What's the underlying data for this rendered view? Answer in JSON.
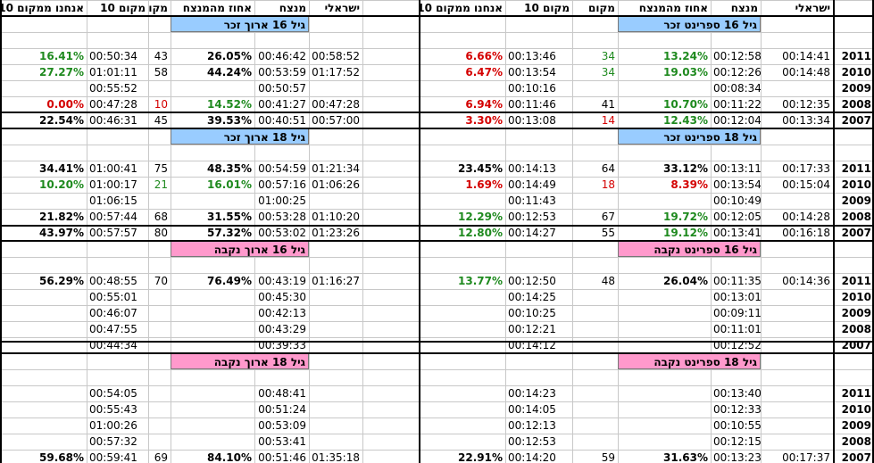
{
  "colors": {
    "blue": "#99ccff",
    "pink": "#ff99cc",
    "green": "#1f8a1f",
    "red": "#d40000"
  },
  "header": {
    "left": [
      "אנחנו ממקום 10",
      "מקום 10",
      "מקום",
      "אחוז מהמנצח",
      "מנצח",
      "ישראלי"
    ],
    "right": [
      "אנחנו ממקום 10",
      "מקום 10",
      "מקום",
      "אחוז מהמנצח",
      "מנצח",
      "ישראלי"
    ]
  },
  "blocks": [
    {
      "left": {
        "label": "גיל 16 ארוך זכר",
        "color": "blue",
        "rows": [
          [
            {
              "v": "16.41%",
              "c": "green"
            },
            "00:50:34",
            "43",
            {
              "v": "26.05%"
            },
            "00:46:42",
            "00:58:52"
          ],
          [
            {
              "v": "27.27%",
              "c": "green"
            },
            "01:01:11",
            "58",
            {
              "v": "44.24%"
            },
            "00:53:59",
            "01:17:52"
          ],
          [
            "",
            "00:55:52",
            "",
            "",
            "00:50:57",
            ""
          ],
          [
            {
              "v": "0.00%",
              "c": "red"
            },
            "00:47:28",
            {
              "v": "10",
              "c": "red"
            },
            {
              "v": "14.52%",
              "c": "green"
            },
            "00:41:27",
            "00:47:28"
          ],
          [
            {
              "v": "22.54%"
            },
            "00:46:31",
            "45",
            {
              "v": "39.53%"
            },
            "00:40:51",
            "00:57:00"
          ]
        ]
      },
      "right": {
        "label": "גיל 16 ספרינט זכר",
        "color": "blue",
        "rows": [
          [
            {
              "v": "6.66%",
              "c": "red"
            },
            "00:13:46",
            {
              "v": "34",
              "c": "green"
            },
            {
              "v": "13.24%",
              "c": "green"
            },
            "00:12:58",
            "00:14:41"
          ],
          [
            {
              "v": "6.47%",
              "c": "red"
            },
            "00:13:54",
            {
              "v": "34",
              "c": "green"
            },
            {
              "v": "19.03%",
              "c": "green"
            },
            "00:12:26",
            "00:14:48"
          ],
          [
            "",
            "00:10:16",
            "",
            "",
            "00:08:34",
            ""
          ],
          [
            {
              "v": "6.94%",
              "c": "red"
            },
            "00:11:46",
            "41",
            {
              "v": "10.70%",
              "c": "green"
            },
            "00:11:22",
            "00:12:35"
          ],
          [
            {
              "v": "3.30%",
              "c": "red"
            },
            "00:13:08",
            {
              "v": "14",
              "c": "red"
            },
            {
              "v": "12.43%",
              "c": "green"
            },
            "00:12:04",
            "00:13:34"
          ]
        ]
      }
    },
    {
      "left": {
        "label": "גיל 18 ארוך זכר",
        "color": "blue",
        "rows": [
          [
            {
              "v": "34.41%"
            },
            "01:00:41",
            "75",
            {
              "v": "48.35%"
            },
            "00:54:59",
            "01:21:34"
          ],
          [
            {
              "v": "10.20%",
              "c": "green"
            },
            "01:00:17",
            {
              "v": "21",
              "c": "green"
            },
            {
              "v": "16.01%",
              "c": "green"
            },
            "00:57:16",
            "01:06:26"
          ],
          [
            "",
            "01:06:15",
            "",
            "",
            "01:00:25",
            ""
          ],
          [
            {
              "v": "21.82%"
            },
            "00:57:44",
            "68",
            {
              "v": "31.55%"
            },
            "00:53:28",
            "01:10:20"
          ],
          [
            {
              "v": "43.97%"
            },
            "00:57:57",
            "80",
            {
              "v": "57.32%"
            },
            "00:53:02",
            "01:23:26"
          ]
        ]
      },
      "right": {
        "label": "גיל 18 ספרינט זכר",
        "color": "blue",
        "rows": [
          [
            {
              "v": "23.45%"
            },
            "00:14:13",
            "64",
            {
              "v": "33.12%"
            },
            "00:13:11",
            "00:17:33"
          ],
          [
            {
              "v": "1.69%",
              "c": "red"
            },
            "00:14:49",
            {
              "v": "18",
              "c": "red"
            },
            {
              "v": "8.39%",
              "c": "red"
            },
            "00:13:54",
            "00:15:04"
          ],
          [
            "",
            "00:11:43",
            "",
            "",
            "00:10:49",
            ""
          ],
          [
            {
              "v": "12.29%",
              "c": "green"
            },
            "00:12:53",
            "67",
            {
              "v": "19.72%",
              "c": "green"
            },
            "00:12:05",
            "00:14:28"
          ],
          [
            {
              "v": "12.80%",
              "c": "green"
            },
            "00:14:27",
            "55",
            {
              "v": "19.12%",
              "c": "green"
            },
            "00:13:41",
            "00:16:18"
          ]
        ]
      }
    },
    {
      "left": {
        "label": "גיל 16 ארוך נקבה",
        "color": "pink",
        "rows": [
          [
            {
              "v": "56.29%"
            },
            "00:48:55",
            "70",
            {
              "v": "76.49%"
            },
            "00:43:19",
            "01:16:27"
          ],
          [
            "",
            "00:55:01",
            "",
            "",
            "00:45:30",
            ""
          ],
          [
            "",
            "00:46:07",
            "",
            "",
            "00:42:13",
            ""
          ],
          [
            "",
            "00:47:55",
            "",
            "",
            "00:43:29",
            ""
          ],
          [
            "",
            "00:44:34",
            "",
            "",
            "00:39:33",
            ""
          ]
        ]
      },
      "right": {
        "label": "גיל 16 ספרינט נקבה",
        "color": "pink",
        "rows": [
          [
            {
              "v": "13.77%",
              "c": "green"
            },
            "00:12:50",
            "48",
            {
              "v": "26.04%"
            },
            "00:11:35",
            "00:14:36"
          ],
          [
            "",
            "00:14:25",
            "",
            "",
            "00:13:01",
            ""
          ],
          [
            "",
            "00:10:25",
            "",
            "",
            "00:09:11",
            ""
          ],
          [
            "",
            "00:12:21",
            "",
            "",
            "00:11:01",
            ""
          ],
          [
            "",
            "00:14:12",
            "",
            "",
            "00:12:52",
            ""
          ]
        ]
      }
    },
    {
      "left": {
        "label": "גיל 18 ארוך נקבה",
        "color": "pink",
        "rows": [
          [
            "",
            "00:54:05",
            "",
            "",
            "00:48:41",
            ""
          ],
          [
            "",
            "00:55:43",
            "",
            "",
            "00:51:24",
            ""
          ],
          [
            "",
            "01:00:26",
            "",
            "",
            "00:53:09",
            ""
          ],
          [
            "",
            "00:57:32",
            "",
            "",
            "00:53:41",
            ""
          ],
          [
            {
              "v": "59.68%"
            },
            "00:59:41",
            "69",
            {
              "v": "84.10%"
            },
            "00:51:46",
            "01:35:18"
          ]
        ]
      },
      "right": {
        "label": "גיל 18 ספרינט נקבה",
        "color": "pink",
        "rows": [
          [
            "",
            "00:14:23",
            "",
            "",
            "00:13:40",
            ""
          ],
          [
            "",
            "00:14:05",
            "",
            "",
            "00:12:33",
            ""
          ],
          [
            "",
            "00:12:13",
            "",
            "",
            "00:10:55",
            ""
          ],
          [
            "",
            "00:12:53",
            "",
            "",
            "00:12:15",
            ""
          ],
          [
            {
              "v": "22.91%"
            },
            "00:14:20",
            "59",
            {
              "v": "31.63%"
            },
            "00:13:23",
            "00:17:37"
          ]
        ]
      }
    }
  ],
  "years": [
    "2011",
    "2010",
    "2009",
    "2008",
    "2007"
  ]
}
